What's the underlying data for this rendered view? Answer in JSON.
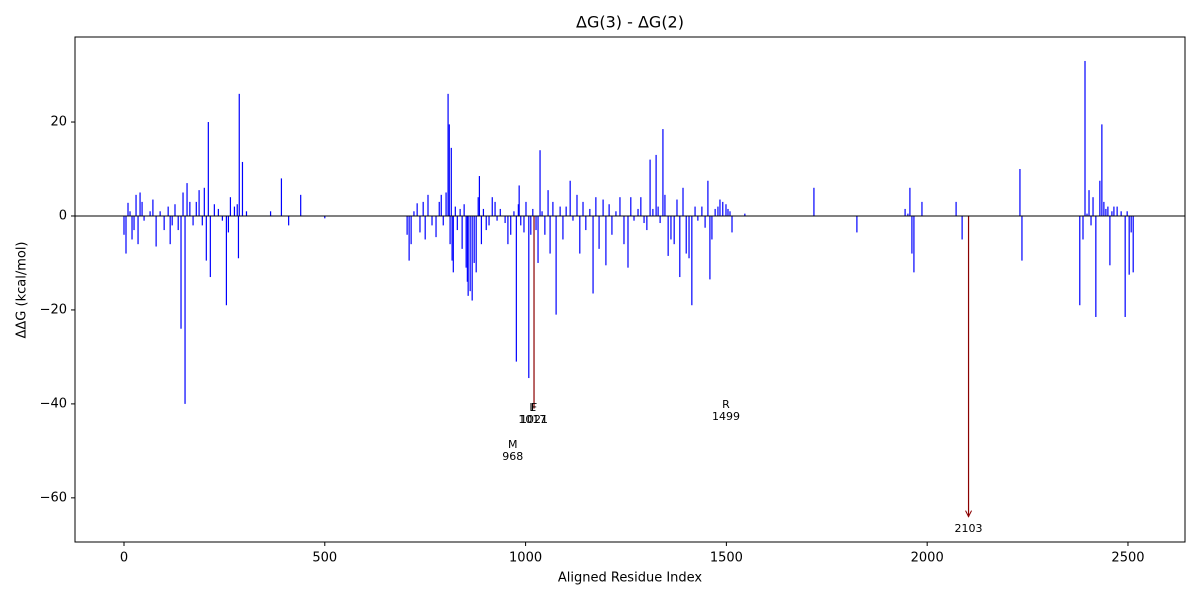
{
  "chart_data": {
    "type": "bar",
    "title": "ΔG(3) - ΔG(2)",
    "xlabel": "Aligned Residue Index",
    "ylabel": "ΔΔG (kcal/mol)",
    "xlim": [
      -122,
      2642
    ],
    "ylim": [
      -69.4,
      38.1
    ],
    "xticks": [
      0,
      500,
      1000,
      1500,
      2000,
      2500
    ],
    "yticks": [
      {
        "value": -60,
        "label": "−60"
      },
      {
        "value": -40,
        "label": "−40"
      },
      {
        "value": -20,
        "label": "−20"
      },
      0,
      20
    ],
    "series": [
      {
        "color": "#0000ff",
        "x": [
          0,
          5,
          10,
          15,
          20,
          25,
          30,
          35,
          40,
          45,
          50,
          65,
          72,
          80,
          90,
          100,
          110,
          115,
          120,
          127,
          135,
          142,
          147,
          152,
          157,
          164,
          172,
          180,
          187,
          195,
          200,
          205,
          210,
          215,
          225,
          235,
          245,
          255,
          260,
          265,
          275,
          282,
          285,
          287,
          295,
          305,
          365,
          392,
          410,
          440,
          500,
          705,
          710,
          715,
          722,
          730,
          737,
          745,
          750,
          757,
          767,
          777,
          785,
          790,
          795,
          802,
          807,
          810,
          812,
          815,
          817,
          820,
          825,
          830,
          837,
          842,
          847,
          852,
          855,
          857,
          862,
          867,
          872,
          877,
          882,
          885,
          890,
          895,
          902,
          909,
          917,
          924,
          929,
          937,
          949,
          956,
          963,
          971,
          977,
          982,
          984,
          988,
          996,
          1001,
          1008,
          1013,
          1018,
          1026,
          1031,
          1036,
          1041,
          1048,
          1056,
          1061,
          1068,
          1076,
          1086,
          1093,
          1101,
          1111,
          1118,
          1128,
          1135,
          1143,
          1150,
          1160,
          1168,
          1175,
          1183,
          1193,
          1200,
          1208,
          1215,
          1225,
          1235,
          1245,
          1255,
          1262,
          1270,
          1280,
          1287,
          1295,
          1302,
          1310,
          1317,
          1325,
          1330,
          1335,
          1342,
          1347,
          1355,
          1362,
          1370,
          1377,
          1384,
          1392,
          1400,
          1407,
          1414,
          1422,
          1429,
          1439,
          1447,
          1454,
          1459,
          1464,
          1472,
          1479,
          1484,
          1491,
          1499,
          1504,
          1509,
          1514,
          1546,
          1718,
          1825,
          1945,
          1952,
          1957,
          1962,
          1967,
          1987,
          2072,
          2087,
          2231,
          2236,
          2380,
          2388,
          2393,
          2398,
          2403,
          2408,
          2413,
          2420,
          2430,
          2435,
          2440,
          2445,
          2450,
          2455,
          2460,
          2465,
          2473,
          2483,
          2493,
          2498,
          2503,
          2508,
          2513
        ],
        "values": [
          -4,
          -8,
          2.8,
          1,
          -5,
          -3,
          4.5,
          -6,
          5,
          3,
          -1,
          1,
          3.5,
          -6.5,
          1,
          -3,
          2,
          -6,
          -2,
          2.5,
          -3,
          -24,
          5,
          -40,
          7,
          3,
          -2,
          3,
          5.5,
          -2,
          6,
          -9.5,
          20,
          -13,
          2.5,
          1.5,
          -1,
          -19,
          -3.5,
          4,
          2,
          2.5,
          -9,
          26,
          11.5,
          1,
          1,
          8,
          -2,
          4.5,
          -0.5,
          -4,
          -9.5,
          -6,
          1,
          2.7,
          -3.5,
          3,
          -5,
          4.5,
          -2,
          -4.5,
          3,
          4.5,
          -2,
          5,
          26,
          19.5,
          -6,
          14.5,
          -9.5,
          -12,
          2,
          -3,
          1.5,
          -7,
          2.5,
          -11,
          -14,
          -17,
          -16,
          -18,
          -10,
          -12,
          4,
          8.5,
          -6,
          1.5,
          -3,
          -2,
          4,
          3,
          -1,
          1.5,
          -1.5,
          -6,
          -4,
          1,
          -31,
          2.5,
          6.5,
          -2,
          -3.5,
          3,
          -34.5,
          -4,
          1.5,
          -3,
          -10,
          14,
          1,
          -4,
          5.5,
          -8,
          3,
          -21,
          2,
          -5,
          2,
          7.5,
          -1,
          4.5,
          -8,
          3,
          -3,
          1.5,
          -16.5,
          4,
          -7,
          3.5,
          -10.5,
          2.5,
          -4,
          1,
          4,
          -6,
          -11,
          4,
          -1,
          1.5,
          4,
          -1.5,
          -3,
          12,
          1.5,
          13,
          2,
          -1.5,
          18.5,
          4.5,
          -8.5,
          -5,
          -6,
          3.5,
          -13,
          6,
          -8,
          -9,
          -19,
          2,
          -1,
          2,
          -2.5,
          7.5,
          -13.5,
          -5,
          1.5,
          2,
          3.5,
          3,
          2.5,
          1.5,
          1,
          -3.5,
          0.5,
          6,
          -3.5,
          1.5,
          0.5,
          6,
          -8,
          -12,
          3,
          3,
          -5,
          10,
          -9.5,
          -19,
          -5,
          33,
          0.5,
          5.5,
          -2,
          4,
          -21.5,
          7.5,
          19.5,
          3,
          1.5,
          2,
          -10.5,
          1,
          2,
          2,
          1,
          -21.5,
          1,
          -12.5,
          -3.5,
          -12
        ]
      },
      {
        "color": "#8b0000",
        "x": [
          1021,
          2103
        ],
        "values": [
          -41,
          -64
        ]
      }
    ],
    "annotations": [
      {
        "letter": "L",
        "index": 1017
      },
      {
        "letter": "F",
        "index": 1021
      },
      {
        "letter": "M",
        "index": 968
      },
      {
        "letter": "R",
        "index": 1499
      },
      {
        "index": 2103
      }
    ]
  }
}
